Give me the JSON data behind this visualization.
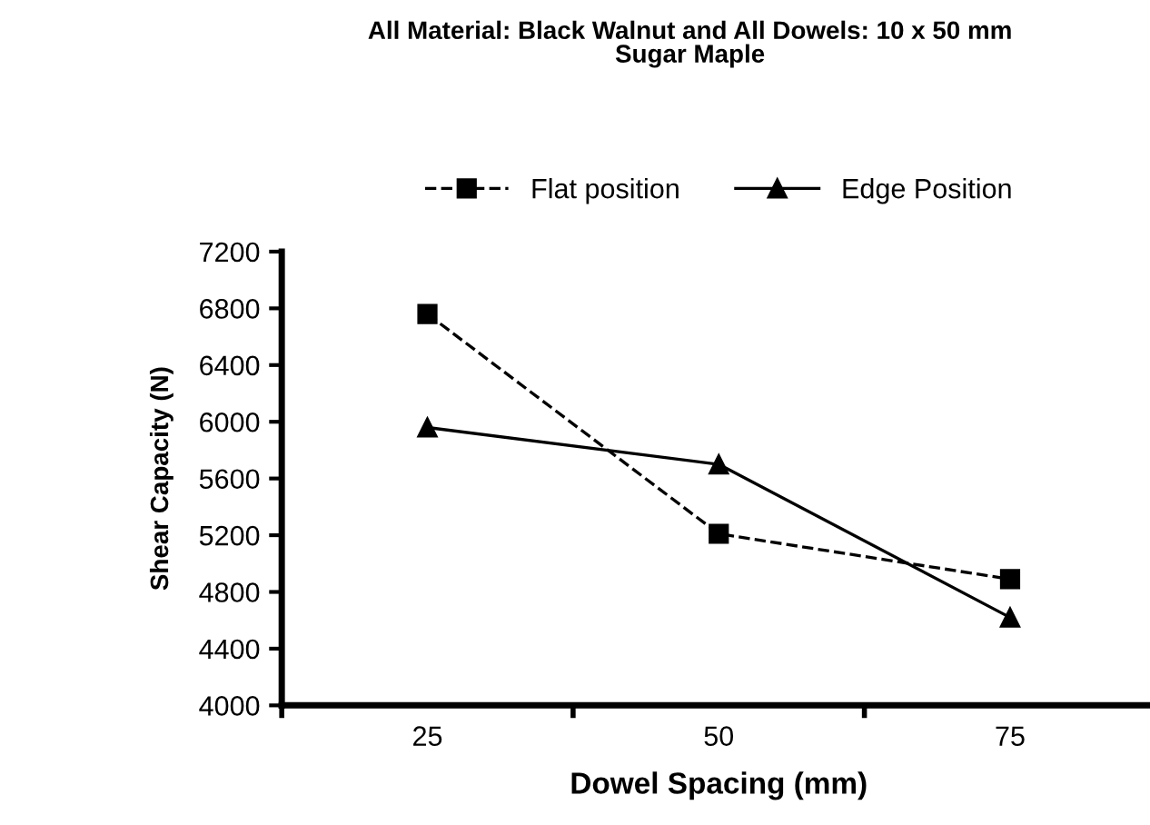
{
  "chart_data": {
    "type": "line",
    "title": "All Material: Black Walnut and All Dowels: 10 x 50 mm\nSugar Maple",
    "xlabel": "Dowel Spacing (mm)",
    "ylabel": "Shear Capacity (N)",
    "categories": [
      "25",
      "50",
      "75"
    ],
    "series": [
      {
        "name": "Flat position",
        "color": "#000000",
        "marker": "square",
        "line_style": "dashed",
        "values": [
          6760,
          5210,
          4890
        ]
      },
      {
        "name": "Edge Position",
        "color": "#000000",
        "marker": "triangle",
        "line_style": "solid",
        "values": [
          5960,
          5700,
          4620
        ]
      }
    ],
    "ylim": [
      4000,
      7200
    ],
    "yticks": [
      4000,
      4400,
      4800,
      5200,
      5600,
      6000,
      6400,
      6800,
      7200
    ],
    "grid": false,
    "legend": "top"
  }
}
